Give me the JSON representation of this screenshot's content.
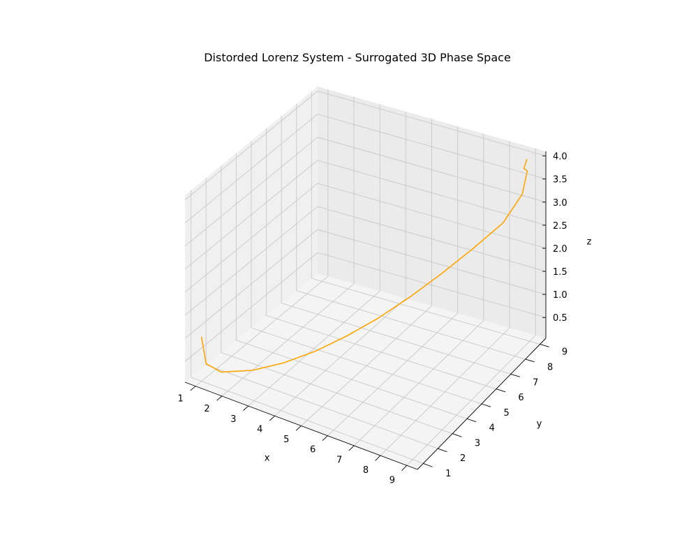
{
  "chart_data": {
    "type": "line",
    "projection": "3d",
    "title": "Distorded Lorenz System - Surrogated 3D Phase Space",
    "xlabel": "x",
    "ylabel": "y",
    "zlabel": "z",
    "xlim": [
      0.6,
      9.4
    ],
    "ylim": [
      0.6,
      9.4
    ],
    "zlim": [
      0.05,
      4.1
    ],
    "xticks": [
      "1",
      "2",
      "3",
      "4",
      "5",
      "6",
      "7",
      "8",
      "9"
    ],
    "yticks": [
      "1",
      "2",
      "3",
      "4",
      "5",
      "6",
      "7",
      "8",
      "9"
    ],
    "zticks": [
      "0.5",
      "1.0",
      "1.5",
      "2.0",
      "2.5",
      "3.0",
      "3.5",
      "4.0"
    ],
    "grid": true,
    "series": [
      {
        "color": "#FFA500",
        "x": [
          1,
          1,
          1.4,
          2.2,
          3.0,
          3.8,
          4.6,
          5.4,
          6.2,
          7.0,
          7.8,
          8.6,
          9.0,
          9.05,
          8.95,
          9.0
        ],
        "y": [
          1,
          1.3,
          1.6,
          2.3,
          3.0,
          3.7,
          4.4,
          5.1,
          5.8,
          6.5,
          7.2,
          7.9,
          8.5,
          8.75,
          8.7,
          8.8
        ],
        "z": [
          1.0,
          0.35,
          0.17,
          0.18,
          0.31,
          0.52,
          0.8,
          1.13,
          1.52,
          1.95,
          2.41,
          2.9,
          3.4,
          3.83,
          3.88,
          4.05
        ]
      }
    ]
  }
}
